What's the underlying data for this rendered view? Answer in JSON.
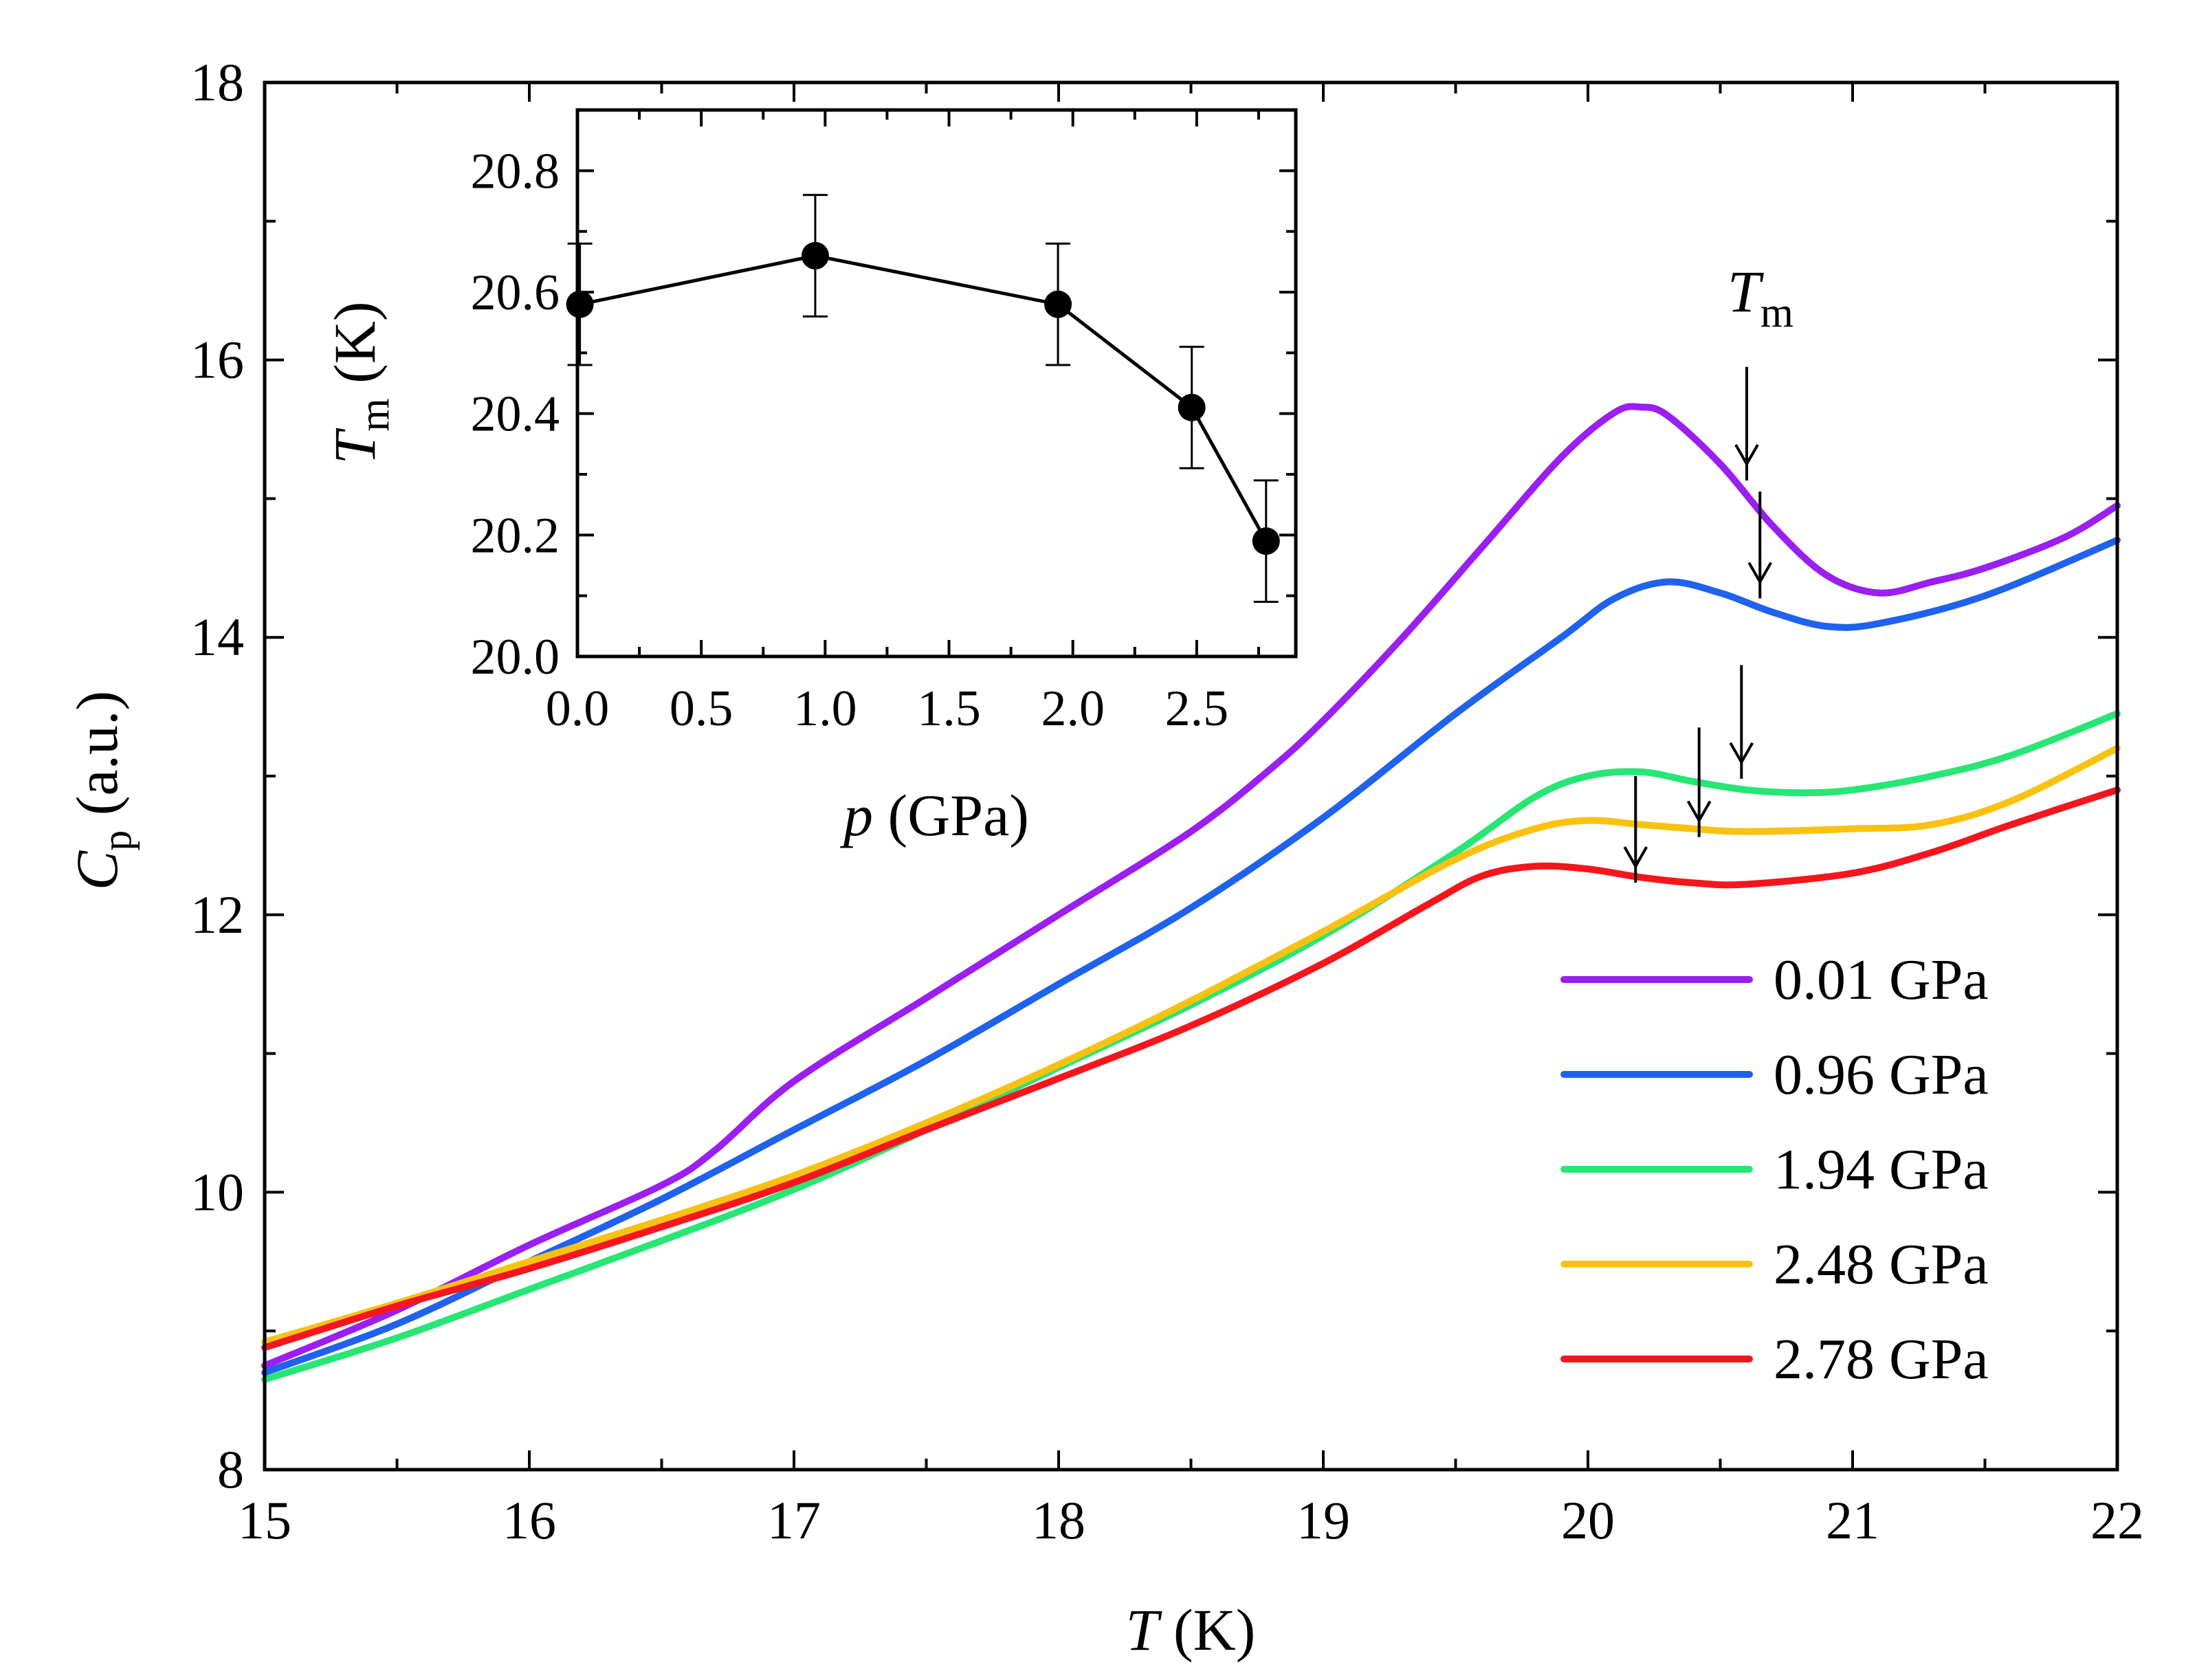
{
  "chart_data": [
    {
      "id": "main",
      "type": "line",
      "title": "",
      "xlabel": {
        "symbol": "T",
        "unit": " (K)"
      },
      "ylabel": {
        "symbol": "C",
        "subscript": "p",
        "unit": " (a.u.)"
      },
      "xlim": [
        15,
        22
      ],
      "ylim": [
        8,
        18
      ],
      "x_ticks": [
        "15",
        "16",
        "17",
        "18",
        "19",
        "20",
        "21",
        "22"
      ],
      "y_ticks": [
        "8",
        "10",
        "12",
        "14",
        "16",
        "18"
      ],
      "grid": false,
      "legend_position": "bottom-right",
      "annotation": {
        "symbol": "T",
        "subscript": "m",
        "x": 20.6,
        "y": 16.35
      },
      "series": [
        {
          "name": "0.01 GPa",
          "color": "#9a1ff0",
          "points": [
            [
              15.0,
              8.75
            ],
            [
              15.5,
              9.15
            ],
            [
              16.0,
              9.62
            ],
            [
              16.5,
              10.05
            ],
            [
              16.7,
              10.3
            ],
            [
              17.0,
              10.8
            ],
            [
              17.5,
              11.4
            ],
            [
              18.0,
              12.0
            ],
            [
              18.5,
              12.6
            ],
            [
              18.8,
              13.05
            ],
            [
              19.0,
              13.4
            ],
            [
              19.3,
              14.0
            ],
            [
              19.6,
              14.65
            ],
            [
              19.9,
              15.3
            ],
            [
              20.1,
              15.62
            ],
            [
              20.2,
              15.66
            ],
            [
              20.3,
              15.6
            ],
            [
              20.5,
              15.25
            ],
            [
              20.7,
              14.8
            ],
            [
              20.9,
              14.45
            ],
            [
              21.1,
              14.32
            ],
            [
              21.3,
              14.4
            ],
            [
              21.5,
              14.5
            ],
            [
              21.8,
              14.72
            ],
            [
              22.0,
              14.95
            ]
          ],
          "tm_marker": {
            "x": 20.6,
            "y_tip": 15.25,
            "y_tail": 15.95
          }
        },
        {
          "name": "0.96 GPa",
          "color": "#1f62ee",
          "points": [
            [
              15.0,
              8.7
            ],
            [
              15.5,
              9.05
            ],
            [
              16.0,
              9.5
            ],
            [
              16.5,
              9.95
            ],
            [
              17.0,
              10.45
            ],
            [
              17.5,
              10.95
            ],
            [
              18.0,
              11.5
            ],
            [
              18.5,
              12.05
            ],
            [
              19.0,
              12.7
            ],
            [
              19.5,
              13.45
            ],
            [
              19.9,
              14.0
            ],
            [
              20.1,
              14.28
            ],
            [
              20.3,
              14.4
            ],
            [
              20.5,
              14.32
            ],
            [
              20.7,
              14.18
            ],
            [
              20.9,
              14.08
            ],
            [
              21.1,
              14.1
            ],
            [
              21.5,
              14.3
            ],
            [
              22.0,
              14.7
            ]
          ],
          "tm_marker": {
            "x": 20.65,
            "y_tip": 14.4,
            "y_tail": 15.05
          }
        },
        {
          "name": "1.94 GPa",
          "color": "#28e675",
          "points": [
            [
              15.0,
              8.65
            ],
            [
              15.5,
              8.95
            ],
            [
              16.0,
              9.3
            ],
            [
              16.5,
              9.65
            ],
            [
              17.0,
              10.02
            ],
            [
              17.5,
              10.45
            ],
            [
              18.0,
              10.9
            ],
            [
              18.5,
              11.35
            ],
            [
              19.0,
              11.85
            ],
            [
              19.5,
              12.45
            ],
            [
              19.8,
              12.85
            ],
            [
              20.0,
              13.0
            ],
            [
              20.2,
              13.03
            ],
            [
              20.4,
              12.96
            ],
            [
              20.6,
              12.9
            ],
            [
              20.8,
              12.88
            ],
            [
              21.0,
              12.9
            ],
            [
              21.3,
              13.0
            ],
            [
              21.6,
              13.15
            ],
            [
              22.0,
              13.45
            ]
          ],
          "tm_marker": {
            "x": 20.58,
            "y_tip": 13.1,
            "y_tail": 13.8
          }
        },
        {
          "name": "2.48 GPa",
          "color": "#f9c212",
          "points": [
            [
              15.0,
              8.92
            ],
            [
              15.5,
              9.2
            ],
            [
              16.0,
              9.5
            ],
            [
              16.5,
              9.8
            ],
            [
              17.0,
              10.12
            ],
            [
              17.5,
              10.5
            ],
            [
              18.0,
              10.92
            ],
            [
              18.5,
              11.38
            ],
            [
              19.0,
              11.88
            ],
            [
              19.5,
              12.4
            ],
            [
              19.8,
              12.62
            ],
            [
              20.0,
              12.68
            ],
            [
              20.2,
              12.65
            ],
            [
              20.4,
              12.62
            ],
            [
              20.6,
              12.6
            ],
            [
              21.0,
              12.62
            ],
            [
              21.3,
              12.65
            ],
            [
              21.6,
              12.82
            ],
            [
              22.0,
              13.2
            ]
          ],
          "tm_marker": {
            "x": 20.42,
            "y_tip": 12.68,
            "y_tail": 13.35
          }
        },
        {
          "name": "2.78 GPa",
          "color": "#f5161d",
          "points": [
            [
              15.0,
              8.88
            ],
            [
              15.5,
              9.18
            ],
            [
              16.0,
              9.45
            ],
            [
              16.5,
              9.75
            ],
            [
              17.0,
              10.07
            ],
            [
              17.5,
              10.45
            ],
            [
              18.0,
              10.82
            ],
            [
              18.5,
              11.2
            ],
            [
              19.0,
              11.65
            ],
            [
              19.4,
              12.08
            ],
            [
              19.6,
              12.28
            ],
            [
              19.8,
              12.35
            ],
            [
              20.0,
              12.33
            ],
            [
              20.2,
              12.27
            ],
            [
              20.4,
              12.23
            ],
            [
              20.6,
              12.22
            ],
            [
              21.0,
              12.3
            ],
            [
              21.3,
              12.45
            ],
            [
              21.6,
              12.65
            ],
            [
              22.0,
              12.9
            ]
          ],
          "tm_marker": {
            "x": 20.18,
            "y_tip": 12.35,
            "y_tail": 13.0
          }
        }
      ]
    },
    {
      "id": "inset",
      "type": "scatter",
      "title": "",
      "xlabel": {
        "symbol": "p",
        "unit": " (GPa)"
      },
      "ylabel": {
        "symbol": "T",
        "subscript": "m",
        "unit": " (K)"
      },
      "xlim": [
        0.0,
        2.9
      ],
      "ylim": [
        20.0,
        20.9
      ],
      "x_ticks": [
        "0.0",
        "0.5",
        "1.0",
        "1.5",
        "2.0",
        "2.5"
      ],
      "y_ticks": [
        "20.0",
        "20.2",
        "20.4",
        "20.6",
        "20.8"
      ],
      "grid": false,
      "connected": true,
      "series": [
        {
          "name": "T_m",
          "color": "#000000",
          "points": [
            {
              "x": 0.01,
              "y": 20.58,
              "err": 0.1
            },
            {
              "x": 0.96,
              "y": 20.66,
              "err": 0.1
            },
            {
              "x": 1.94,
              "y": 20.58,
              "err": 0.1
            },
            {
              "x": 2.48,
              "y": 20.41,
              "err": 0.1
            },
            {
              "x": 2.78,
              "y": 20.19,
              "err": 0.1
            }
          ]
        }
      ]
    }
  ]
}
